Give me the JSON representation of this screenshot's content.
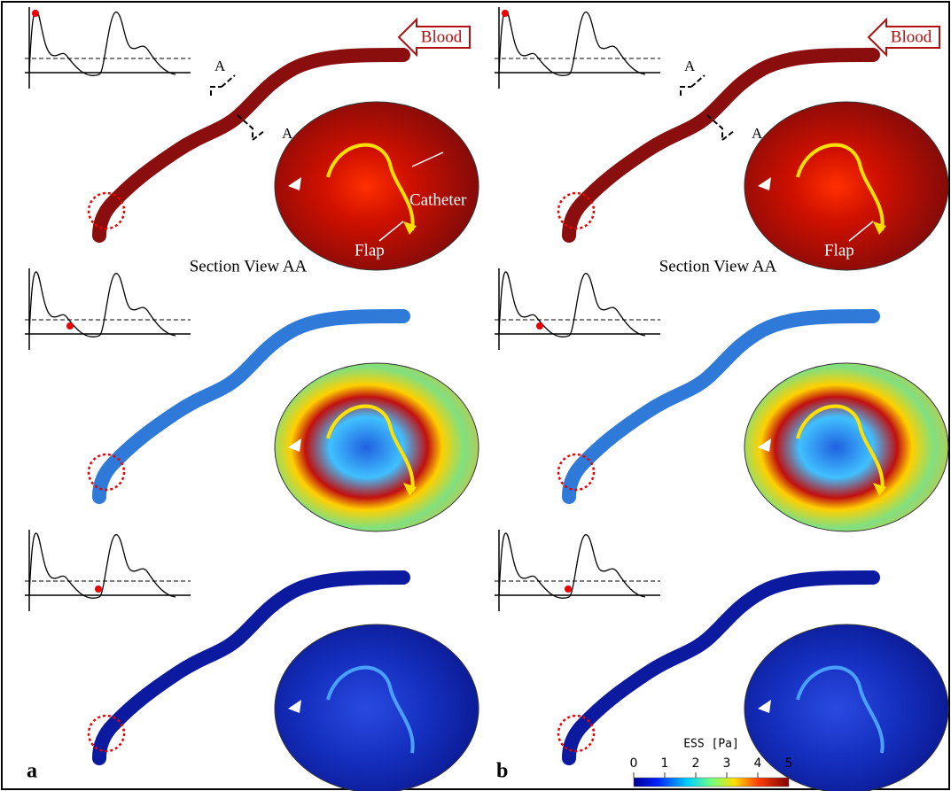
{
  "panels": [
    {
      "label": "a",
      "blood": "Blood",
      "section_markers": [
        "A",
        "A"
      ],
      "annotations": {
        "catheter": "Catheter",
        "flap": "Flap"
      },
      "section_title": "Section View AA"
    },
    {
      "label": "b",
      "blood": "Blood",
      "section_markers": [
        "A",
        "A"
      ],
      "annotations": {
        "flap": "Flap"
      },
      "section_title": "Section View AA"
    }
  ],
  "colorbar": {
    "title": "ESS [Pa]",
    "lim": [
      0,
      5
    ],
    "ticks": [
      0,
      1,
      2,
      3,
      4,
      5
    ]
  }
}
